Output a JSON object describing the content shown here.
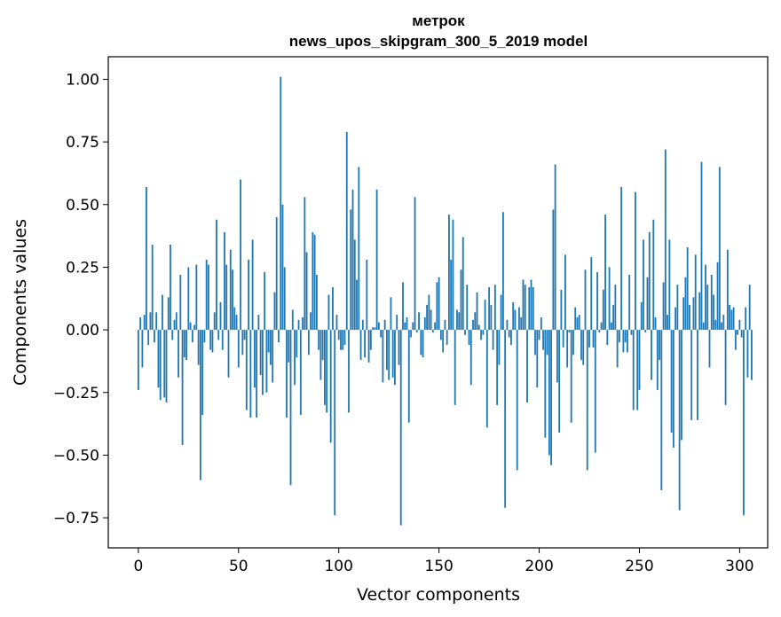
{
  "chart_data": {
    "type": "bar",
    "title_lines": [
      "метрок",
      "news_upos_skipgram_300_5_2019 model"
    ],
    "xlabel": "Vector components",
    "ylabel": "Components values",
    "xlim": [
      -15,
      314
    ],
    "ylim": [
      -0.87,
      1.09
    ],
    "xticks": [
      0,
      50,
      100,
      150,
      200,
      250,
      300
    ],
    "yticks": [
      -0.75,
      -0.5,
      -0.25,
      0.0,
      0.25,
      0.5,
      0.75,
      1.0
    ],
    "ytick_labels": [
      "−0.75",
      "−0.50",
      "−0.25",
      "0.00",
      "0.25",
      "0.50",
      "0.75",
      "1.00"
    ],
    "bar_color": "#1f77b4",
    "grid": false,
    "values": [
      -0.24,
      0.05,
      -0.15,
      0.06,
      0.57,
      -0.06,
      0.07,
      0.34,
      -0.05,
      0.07,
      -0.23,
      -0.28,
      0.14,
      -0.27,
      -0.29,
      0.13,
      0.34,
      -0.04,
      0.04,
      0.07,
      -0.19,
      0.22,
      -0.46,
      -0.11,
      -0.12,
      0.25,
      0.03,
      -0.05,
      0.02,
      0.26,
      -0.14,
      -0.6,
      -0.34,
      -0.05,
      0.28,
      0.26,
      -0.08,
      -0.09,
      0.07,
      0.44,
      -0.04,
      0.11,
      -0.08,
      0.39,
      0.26,
      -0.19,
      0.32,
      0.24,
      0.09,
      0.06,
      -0.15,
      0.6,
      -0.1,
      -0.04,
      -0.32,
      0.28,
      -0.35,
      0.36,
      -0.23,
      -0.35,
      0.06,
      -0.18,
      -0.26,
      0.23,
      -0.25,
      -0.09,
      -0.14,
      -0.21,
      0.15,
      0.45,
      -0.05,
      1.01,
      0.5,
      0.25,
      -0.35,
      -0.13,
      -0.62,
      0.08,
      -0.22,
      -0.11,
      0.04,
      -0.34,
      0.05,
      0.53,
      0.31,
      -0.1,
      0.07,
      0.39,
      0.38,
      0.22,
      -0.08,
      -0.2,
      -0.12,
      -0.3,
      -0.33,
      0.14,
      -0.45,
      0.17,
      -0.74,
      0.06,
      -0.04,
      -0.08,
      -0.08,
      -0.06,
      0.79,
      -0.33,
      0.48,
      0.56,
      0.36,
      0.2,
      0.65,
      -0.12,
      0.04,
      -0.11,
      0.28,
      -0.13,
      -0.08,
      0.01,
      0.01,
      0.56,
      0.03,
      -0.03,
      -0.21,
      0.04,
      -0.16,
      -0.2,
      0.13,
      -0.19,
      -0.22,
      0.06,
      -0.14,
      -0.78,
      0.19,
      0.03,
      0.05,
      -0.37,
      -0.03,
      0.03,
      0.53,
      -0.01,
      0.07,
      -0.1,
      -0.11,
      0.05,
      0.1,
      0.14,
      0.08,
      -0.01,
      0.03,
      0.19,
      0.21,
      -0.04,
      -0.09,
      0.04,
      -0.06,
      0.46,
      0.28,
      0.44,
      -0.3,
      0.08,
      0.07,
      0.24,
      0.37,
      -0.02,
      0.18,
      -0.06,
      -0.22,
      0.04,
      0.07,
      0.15,
      0.02,
      -0.04,
      -0.02,
      0.12,
      -0.39,
      0.17,
      0.1,
      -0.08,
      0.18,
      -0.3,
      -0.14,
      0.14,
      0.47,
      -0.71,
      0.04,
      -0.03,
      -0.06,
      0.11,
      0.08,
      -0.56,
      0.09,
      0.05,
      0.2,
      0.18,
      -0.29,
      0.17,
      0.2,
      0.17,
      -0.1,
      -0.23,
      -0.04,
      0.05,
      -0.08,
      -0.43,
      -0.1,
      -0.5,
      -0.54,
      0.48,
      0.66,
      -0.21,
      -0.41,
      0.16,
      -0.07,
      0.3,
      -0.15,
      -0.01,
      -0.37,
      -0.1,
      0.09,
      0.05,
      0.06,
      -0.12,
      -0.14,
      0.24,
      -0.56,
      -0.07,
      0.29,
      -0.07,
      -0.49,
      0.23,
      -0.01,
      0.03,
      0.16,
      0.46,
      -0.06,
      0.25,
      0.03,
      0.1,
      0.18,
      -0.15,
      -0.05,
      0.57,
      -0.09,
      -0.05,
      -0.09,
      0.22,
      -0.02,
      -0.32,
      0.55,
      -0.32,
      -0.24,
      0.11,
      0.36,
      -0.01,
      0.21,
      0.39,
      -0.2,
      0.44,
      0.05,
      -0.24,
      -0.12,
      -0.64,
      0.19,
      0.72,
      0.06,
      0.36,
      -0.41,
      -0.47,
      0.09,
      0.18,
      -0.72,
      -0.44,
      0.13,
      0.21,
      0.33,
      0.1,
      -0.36,
      0.13,
      0.3,
      -0.36,
      0.15,
      0.67,
      0.03,
      0.26,
      0.18,
      -0.15,
      0.22,
      0.14,
      0.04,
      0.27,
      0.65,
      0.03,
      0.06,
      -0.3,
      0.32,
      0.1,
      0.08,
      0.09,
      -0.08,
      -0.02,
      0.04,
      -0.03,
      -0.74,
      0.09,
      -0.19,
      0.18,
      -0.2
    ]
  }
}
